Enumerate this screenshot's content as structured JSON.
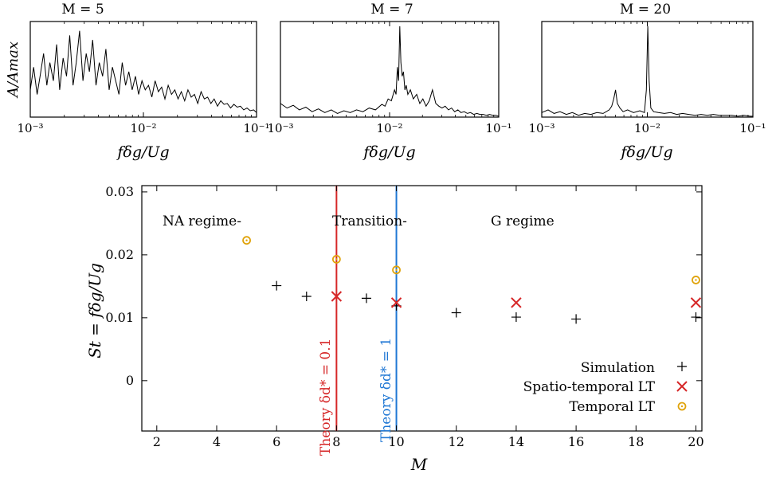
{
  "chart_data": [
    {
      "type": "line",
      "title": "M = 5",
      "xlabel": "fδg/Ug",
      "ylabel": "A/Amax",
      "x_scale": "log",
      "xlim": [
        0.001,
        0.1
      ],
      "xticks": [
        0.001,
        0.01,
        0.1
      ],
      "xtick_labels": [
        "10⁻³",
        "10⁻²",
        "10⁻¹"
      ],
      "ylim": [
        0,
        1
      ],
      "series": [
        {
          "x": [
            0.001,
            0.00107,
            0.00115,
            0.00122,
            0.00131,
            0.0014,
            0.00149,
            0.0016,
            0.00171,
            0.00182,
            0.00195,
            0.00209,
            0.00223,
            0.00239,
            0.00255,
            0.00273,
            0.00292,
            0.00312,
            0.00333,
            0.00356,
            0.00381,
            0.00407,
            0.00436,
            0.00466,
            0.00498,
            0.00532,
            0.00569,
            0.00608,
            0.0065,
            0.00695,
            0.00743,
            0.00795,
            0.0085,
            0.00908,
            0.00971,
            0.01038,
            0.0111,
            0.01187,
            0.01269,
            0.01356,
            0.0145,
            0.0155,
            0.01657,
            0.01772,
            0.01894,
            0.02025,
            0.02165,
            0.02315,
            0.02475,
            0.02646,
            0.02828,
            0.03024,
            0.03233,
            0.03456,
            0.03695,
            0.0395,
            0.04223,
            0.04515,
            0.04827,
            0.0516,
            0.05517,
            0.05898,
            0.06306,
            0.06742,
            0.07208,
            0.07706,
            0.08238,
            0.08808,
            0.09416,
            0.1
          ],
          "values": [
            0.3,
            0.55,
            0.25,
            0.45,
            0.7,
            0.35,
            0.6,
            0.4,
            0.8,
            0.3,
            0.65,
            0.45,
            0.9,
            0.35,
            0.6,
            0.95,
            0.4,
            0.7,
            0.5,
            0.85,
            0.35,
            0.6,
            0.45,
            0.75,
            0.3,
            0.55,
            0.4,
            0.25,
            0.6,
            0.35,
            0.5,
            0.3,
            0.45,
            0.25,
            0.4,
            0.3,
            0.35,
            0.22,
            0.4,
            0.28,
            0.33,
            0.2,
            0.35,
            0.25,
            0.3,
            0.2,
            0.28,
            0.18,
            0.3,
            0.22,
            0.25,
            0.15,
            0.28,
            0.2,
            0.22,
            0.15,
            0.2,
            0.12,
            0.18,
            0.14,
            0.15,
            0.1,
            0.14,
            0.11,
            0.12,
            0.08,
            0.1,
            0.07,
            0.08,
            0.05
          ]
        }
      ]
    },
    {
      "type": "line",
      "title": "M = 7",
      "xlabel": "fδg/Ug",
      "x_scale": "log",
      "xlim": [
        0.001,
        0.1
      ],
      "xticks": [
        0.001,
        0.01,
        0.1
      ],
      "xtick_labels": [
        "10⁻³",
        "10⁻²",
        "10⁻¹"
      ],
      "ylim": [
        0,
        1
      ],
      "series": [
        {
          "x": [
            0.001,
            0.00115,
            0.00131,
            0.00149,
            0.00171,
            0.00195,
            0.00223,
            0.00255,
            0.00292,
            0.00333,
            0.00381,
            0.00436,
            0.00498,
            0.00569,
            0.0065,
            0.00743,
            0.0085,
            0.00908,
            0.00971,
            0.01038,
            0.0111,
            0.01145,
            0.0118,
            0.0121,
            0.0124,
            0.0127,
            0.01305,
            0.0134,
            0.0138,
            0.0142,
            0.0147,
            0.0155,
            0.0165,
            0.0177,
            0.0189,
            0.0202,
            0.0216,
            0.0231,
            0.0247,
            0.0265,
            0.0283,
            0.0302,
            0.0323,
            0.0346,
            0.037,
            0.0395,
            0.0422,
            0.0451,
            0.0483,
            0.0516,
            0.0552,
            0.059,
            0.0631,
            0.0674,
            0.0721,
            0.0771,
            0.0824,
            0.0881,
            0.0942,
            0.1
          ],
          "values": [
            0.15,
            0.1,
            0.13,
            0.08,
            0.11,
            0.06,
            0.09,
            0.05,
            0.08,
            0.04,
            0.07,
            0.05,
            0.08,
            0.06,
            0.1,
            0.08,
            0.14,
            0.12,
            0.2,
            0.18,
            0.3,
            0.25,
            0.55,
            0.4,
            1.0,
            0.6,
            0.45,
            0.5,
            0.3,
            0.35,
            0.25,
            0.3,
            0.2,
            0.25,
            0.15,
            0.2,
            0.12,
            0.18,
            0.3,
            0.15,
            0.12,
            0.1,
            0.12,
            0.08,
            0.1,
            0.06,
            0.08,
            0.05,
            0.06,
            0.04,
            0.05,
            0.03,
            0.04,
            0.03,
            0.03,
            0.02,
            0.03,
            0.02,
            0.02,
            0.01
          ]
        }
      ]
    },
    {
      "type": "line",
      "title": "M = 20",
      "xlabel": "fδg/Ug",
      "x_scale": "log",
      "xlim": [
        0.001,
        0.1
      ],
      "xticks": [
        0.001,
        0.01,
        0.1
      ],
      "xtick_labels": [
        "10⁻³",
        "10⁻²",
        "10⁻¹"
      ],
      "ylim": [
        0,
        1
      ],
      "series": [
        {
          "x": [
            0.001,
            0.00115,
            0.00131,
            0.00149,
            0.00171,
            0.00195,
            0.00223,
            0.00255,
            0.00292,
            0.00333,
            0.00381,
            0.00436,
            0.0046,
            0.0048,
            0.005,
            0.0052,
            0.0055,
            0.0059,
            0.0065,
            0.0074,
            0.0085,
            0.0094,
            0.0098,
            0.0101,
            0.0104,
            0.0108,
            0.0115,
            0.0127,
            0.0145,
            0.0166,
            0.019,
            0.0216,
            0.0247,
            0.0283,
            0.0323,
            0.037,
            0.0422,
            0.0483,
            0.0552,
            0.0631,
            0.0721,
            0.0824,
            0.0942,
            0.1
          ],
          "values": [
            0.05,
            0.08,
            0.04,
            0.06,
            0.03,
            0.05,
            0.02,
            0.04,
            0.03,
            0.05,
            0.04,
            0.08,
            0.12,
            0.2,
            0.3,
            0.15,
            0.1,
            0.06,
            0.08,
            0.05,
            0.07,
            0.05,
            0.3,
            1.0,
            0.4,
            0.1,
            0.06,
            0.05,
            0.04,
            0.05,
            0.03,
            0.04,
            0.03,
            0.02,
            0.03,
            0.02,
            0.03,
            0.02,
            0.02,
            0.02,
            0.01,
            0.02,
            0.01,
            0.01
          ]
        }
      ]
    },
    {
      "type": "scatter",
      "xlabel": "M",
      "ylabel": "St = fδg/Ug",
      "xlim": [
        1.5,
        20.2
      ],
      "ylim": [
        -0.008,
        0.031
      ],
      "xticks": [
        2,
        4,
        6,
        8,
        10,
        12,
        14,
        16,
        18,
        20
      ],
      "yticks": [
        0,
        0.01,
        0.02,
        0.03
      ],
      "ytick_labels": [
        "0",
        "0.01",
        "0.02",
        "0.03"
      ],
      "legend_position": "bottom-right",
      "regions": [
        "NA regime-",
        "Transition-",
        "G regime"
      ],
      "series": [
        {
          "name": "Simulation",
          "marker": "plus",
          "color": "#000000",
          "x": [
            6,
            7,
            9,
            10,
            12,
            14,
            16,
            20
          ],
          "y": [
            0.0151,
            0.0134,
            0.0131,
            0.0119,
            0.0108,
            0.0101,
            0.0098,
            0.0101
          ]
        },
        {
          "name": "Spatio-temporal LT",
          "marker": "x",
          "color": "#d62728",
          "x": [
            8,
            10,
            14,
            20
          ],
          "y": [
            0.0134,
            0.0124,
            0.0124,
            0.0124
          ]
        },
        {
          "name": "Temporal LT",
          "marker": "circle",
          "color": "#e0a30b",
          "x": [
            5,
            8,
            10,
            20
          ],
          "y": [
            0.0223,
            0.0193,
            0.0176,
            0.016
          ]
        }
      ],
      "vlines": [
        {
          "x": 8,
          "color": "#d62728",
          "label": "Theory δd* = 0.1"
        },
        {
          "x": 10,
          "color": "#1f77d4",
          "label": "Theory δd* = 1"
        }
      ]
    }
  ]
}
